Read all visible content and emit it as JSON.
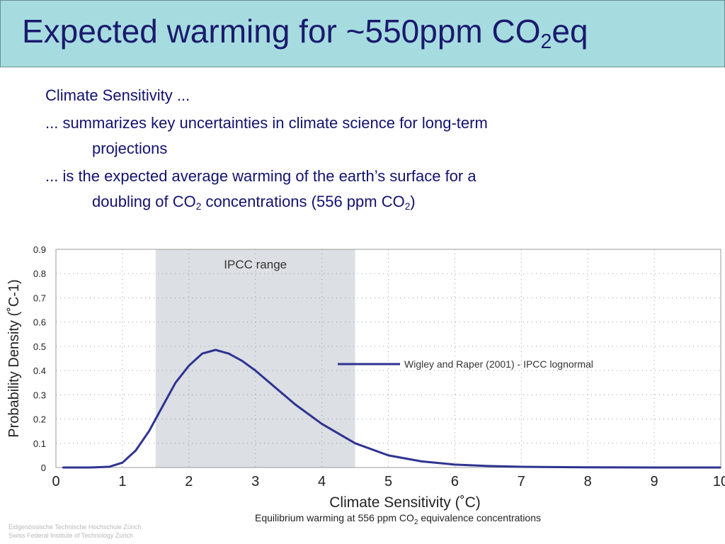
{
  "slide": {
    "title_main": "Expected warming for ~550ppm CO",
    "title_sub": "2",
    "title_tail": "eq",
    "bullet1": "Climate Sensitivity ...",
    "bullet2_line1": "... summarizes key uncertainties in climate science for long-term",
    "bullet2_line2": "projections",
    "bullet3_line1": "... is the expected average warming of the earth’s surface for a",
    "bullet3_line2_a": "doubling of CO",
    "bullet3_line2_sub1": "2",
    "bullet3_line2_b": " concentrations (556 ppm CO",
    "bullet3_line2_sub2": "2",
    "bullet3_line2_c": ")",
    "footer_line1": "Eidgenössische Technische Hochschule Zürich",
    "footer_line2": "Swiss Federal Institute of Technology Zurich"
  },
  "chart_data": {
    "type": "line",
    "xlabel": "Climate Sensitivity (˚C)",
    "ylabel": "Probability Density (˚C-1)",
    "subtitle_main": "Equilibrium warming at 556 ppm CO",
    "subtitle_sub": "2",
    "subtitle_tail": " equivalence concentrations",
    "xlim": [
      0,
      10
    ],
    "ylim": [
      0,
      0.9
    ],
    "xticks": [
      "0",
      "1",
      "2",
      "3",
      "4",
      "5",
      "6",
      "7",
      "8",
      "9",
      "10"
    ],
    "yticks": [
      "0",
      "0.1",
      "0.2",
      "0.3",
      "0.4",
      "0.5",
      "0.6",
      "0.7",
      "0.8",
      "0.9"
    ],
    "grid": true,
    "legend_position": "right",
    "shaded_range": {
      "label": "IPCC range",
      "from": 1.5,
      "to": 4.5,
      "color": "#dcdfe3"
    },
    "series": [
      {
        "name": "Wigley and Raper (2001) - IPCC lognormal",
        "color": "#2e3390",
        "x": [
          0.1,
          0.5,
          0.8,
          1.0,
          1.2,
          1.4,
          1.6,
          1.8,
          2.0,
          2.2,
          2.4,
          2.6,
          2.8,
          3.0,
          3.3,
          3.6,
          4.0,
          4.5,
          5.0,
          5.5,
          6.0,
          6.5,
          7.0,
          8.0,
          9.0,
          10.0
        ],
        "y": [
          0,
          0,
          0.003,
          0.02,
          0.07,
          0.15,
          0.25,
          0.35,
          0.42,
          0.47,
          0.485,
          0.47,
          0.44,
          0.4,
          0.33,
          0.26,
          0.18,
          0.1,
          0.05,
          0.025,
          0.012,
          0.006,
          0.003,
          0.001,
          0.0,
          0.0
        ]
      }
    ]
  }
}
